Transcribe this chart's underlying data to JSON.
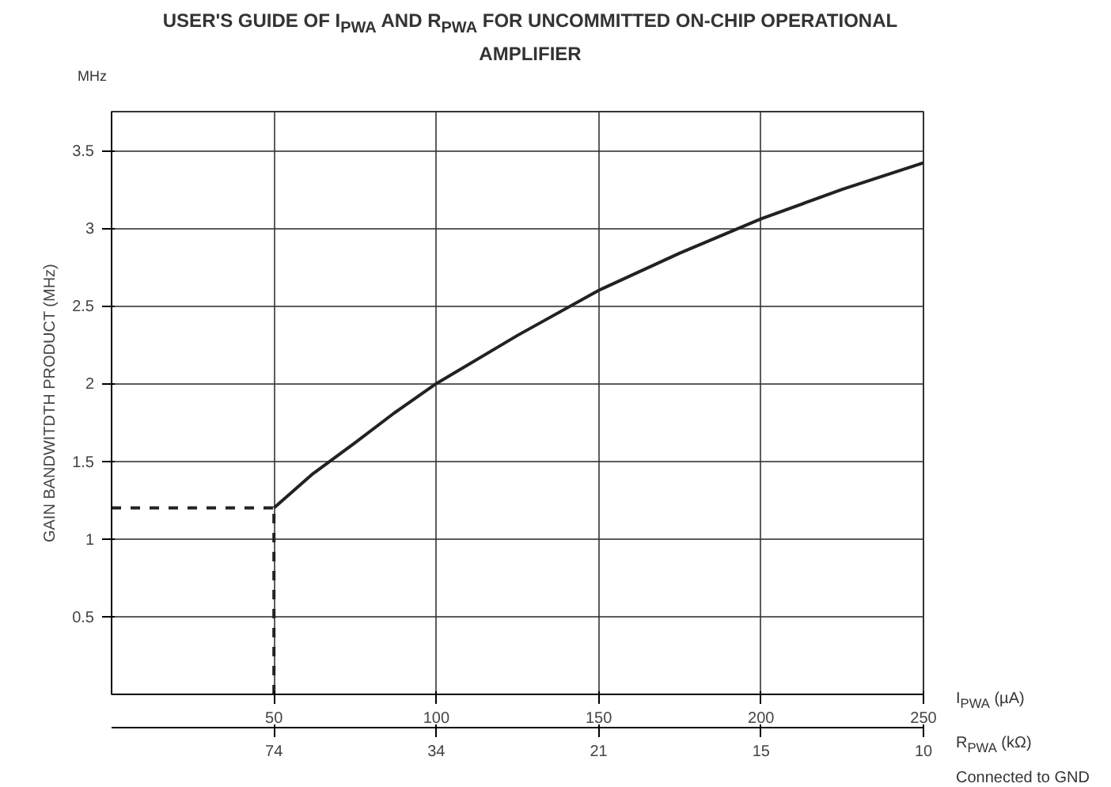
{
  "chart_data": {
    "type": "line",
    "title": "USER'S GUIDE OF I$_{PWA}$ AND R$_{PWA}$ FOR UNCOMMITTED ON-CHIP OPERATIONAL AMPLIFIER",
    "xlabel": "I$_{PWA}$ (µA)",
    "x2label": "R$_{PWA}$ (kΩ)",
    "ylabel": "GAIN BANDWITDTH PRODUCT (MHz)",
    "annotations": [
      "MHz",
      "Connected to GND",
      {
        "text": "74",
        "x": 50
      },
      {
        "text": "34",
        "x": 100
      },
      {
        "text": "21",
        "x": 150
      },
      {
        "text": "15",
        "x": 200
      },
      {
        "text": "10",
        "x": 250
      }
    ],
    "series": [
      {
        "color": "#222222",
        "x": [
          50,
          62,
          75,
          87,
          100,
          125,
          150,
          175,
          200,
          225,
          250
        ],
        "values": [
          1.2,
          1.42,
          1.62,
          1.81,
          2.0,
          2.31,
          2.6,
          2.84,
          3.06,
          3.25,
          3.42
        ],
        "line_style": "solid"
      },
      {
        "color": "#222222",
        "x": [
          0,
          50
        ],
        "values": [
          1.2,
          1.2
        ],
        "line_style": "dashed"
      },
      {
        "color": "#222222",
        "x": [
          50,
          50
        ],
        "values": [
          0,
          1.2
        ],
        "line_style": "dashed"
      }
    ],
    "xlim": [
      0,
      250
    ],
    "xticks": [
      50,
      100,
      150,
      200,
      250
    ],
    "ylim": [
      0,
      3.75
    ],
    "yticks": [
      0.5,
      1,
      1.5,
      2,
      2.5,
      3,
      3.5
    ],
    "grid": true
  }
}
